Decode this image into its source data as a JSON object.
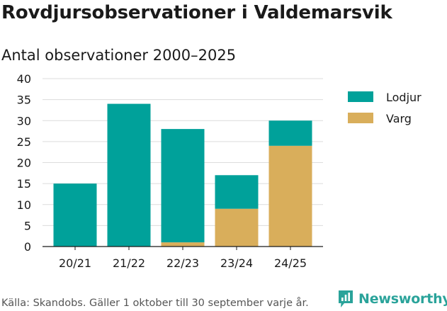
{
  "title": "Rovdjursobservationer i Valdemarsvik",
  "subtitle": "Antal observationer 2000–2025",
  "source": "Källa: Skandobs. Gäller 1 oktober till 30 september varje år.",
  "brand": {
    "name": "Newsworthy",
    "icon": "newsworthy-logo-icon",
    "color": "#2aa39a"
  },
  "chart_data": {
    "type": "bar",
    "stacked": true,
    "categories": [
      "20/21",
      "21/22",
      "22/23",
      "23/24",
      "24/25"
    ],
    "series": [
      {
        "name": "Varg",
        "color": "#d9ae5b",
        "values": [
          0,
          0,
          1,
          9,
          24
        ]
      },
      {
        "name": "Lodjur",
        "color": "#00a19a",
        "values": [
          15,
          34,
          27,
          8,
          6
        ]
      }
    ],
    "legend_order": [
      "Lodjur",
      "Varg"
    ],
    "legend_position": "right",
    "ylim": [
      0,
      40
    ],
    "yticks": [
      0,
      5,
      10,
      15,
      20,
      25,
      30,
      35,
      40
    ],
    "grid": true,
    "title": "Rovdjursobservationer i Valdemarsvik",
    "subtitle": "Antal observationer 2000–2025",
    "xlabel": "",
    "ylabel": ""
  }
}
